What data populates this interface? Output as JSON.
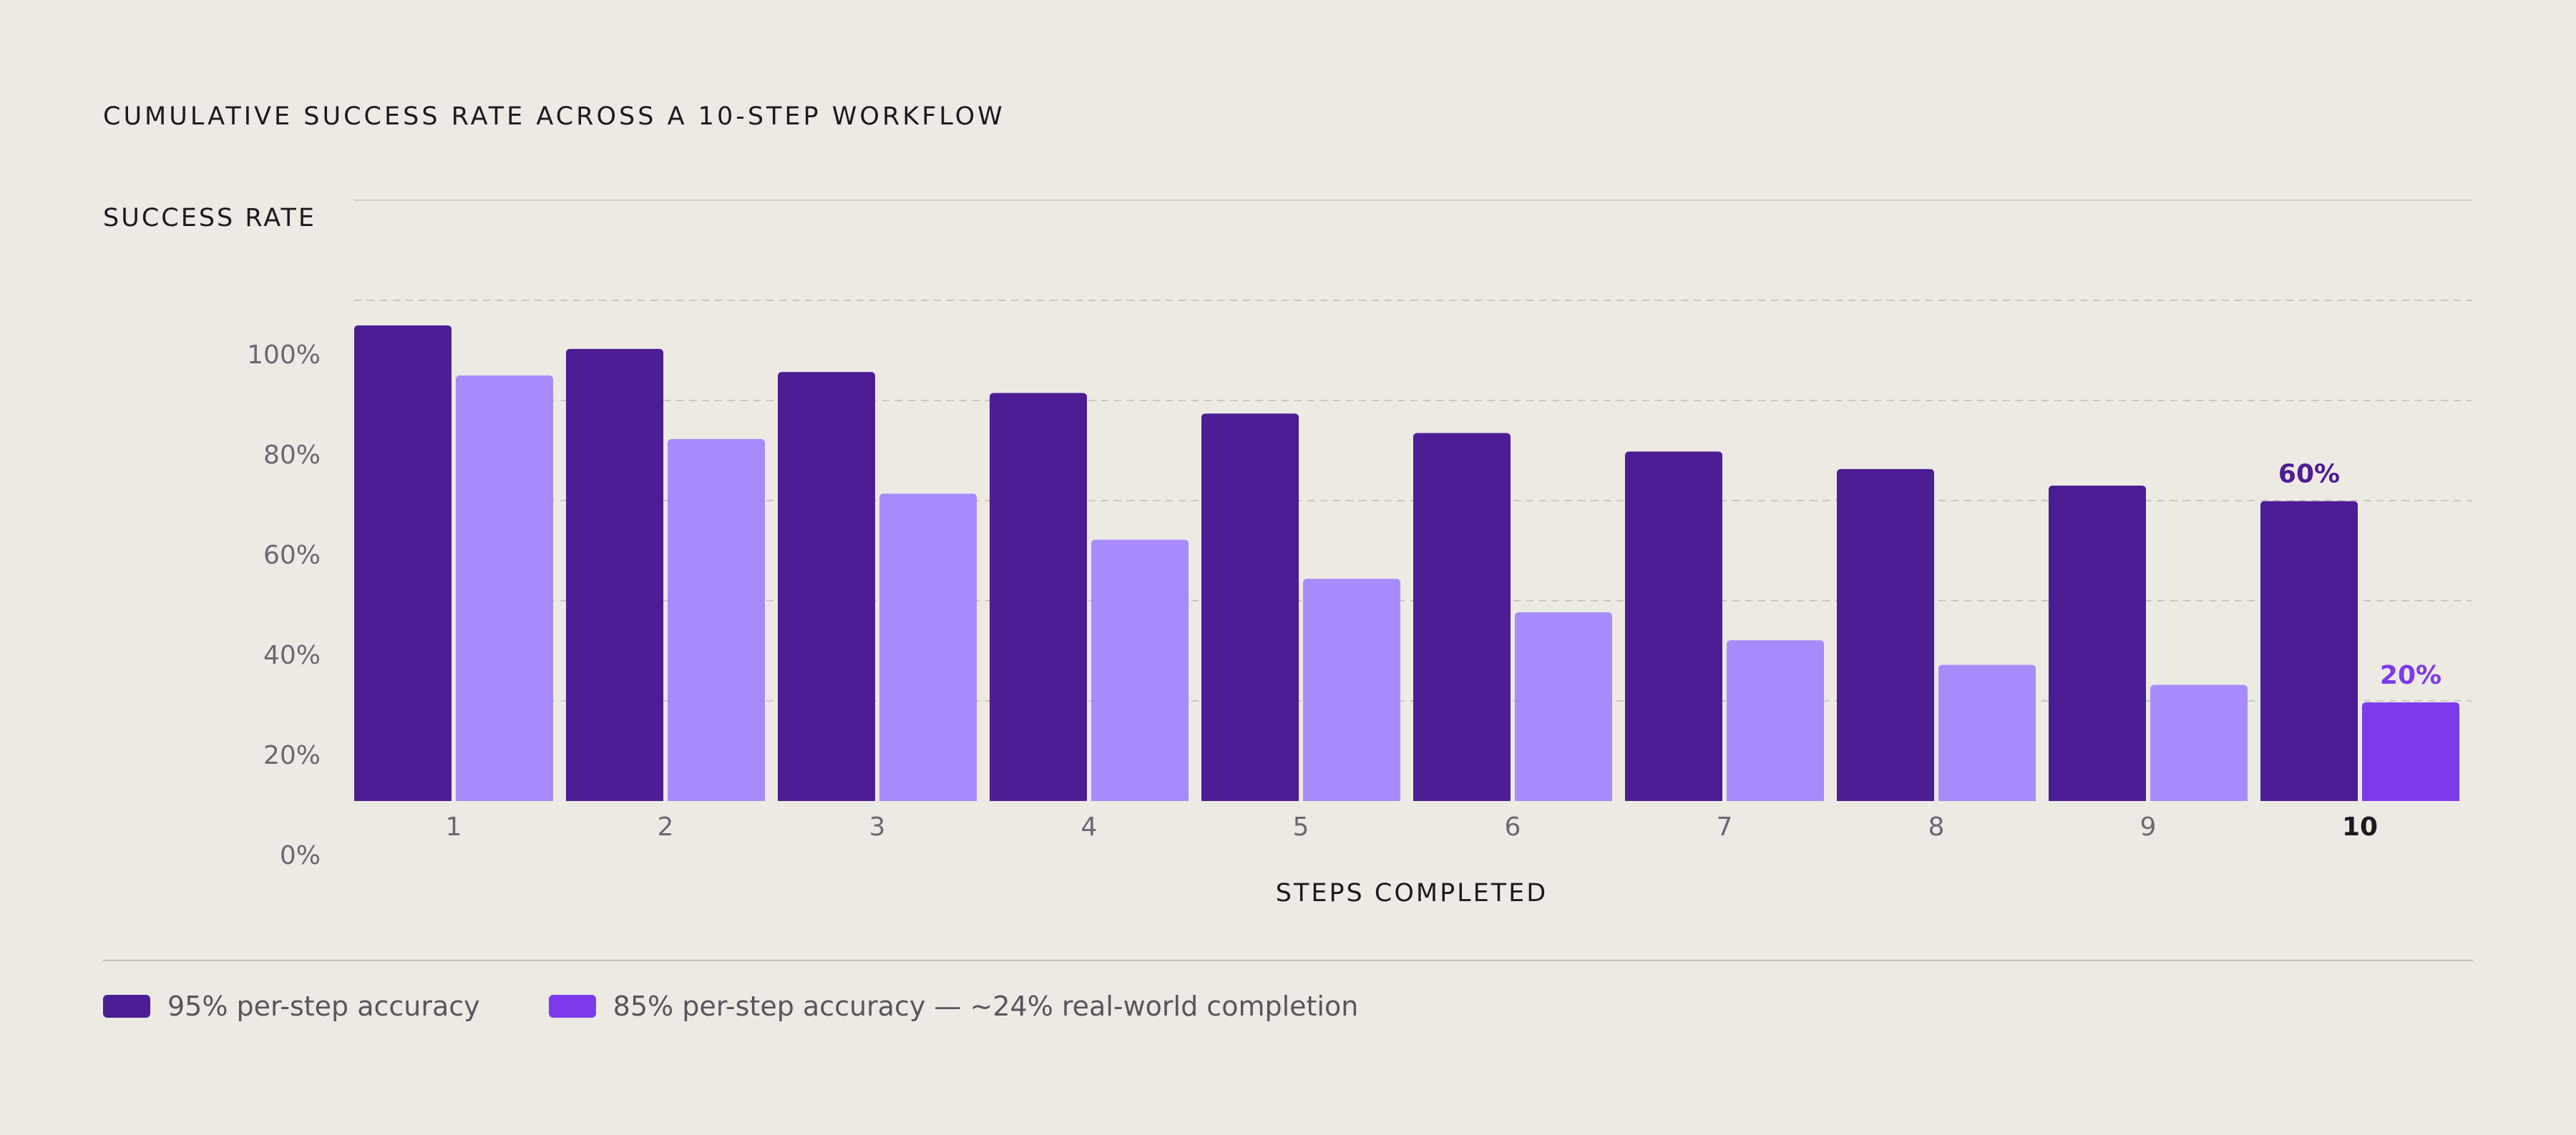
{
  "chart_data": {
    "type": "bar",
    "title": "CUMULATIVE SUCCESS RATE ACROSS A 10-STEP WORKFLOW",
    "ylabel": "SUCCESS RATE",
    "xlabel": "STEPS COMPLETED",
    "categories": [
      "1",
      "2",
      "3",
      "4",
      "5",
      "6",
      "7",
      "8",
      "9",
      "10"
    ],
    "y_ticks": [
      0,
      20,
      40,
      60,
      80,
      100
    ],
    "y_tick_labels": [
      "0%",
      "20%",
      "40%",
      "60%",
      "80%",
      "100%"
    ],
    "ylim": [
      0,
      120
    ],
    "grid": true,
    "legend_position": "bottom-left",
    "series": [
      {
        "name": "95% per-step accuracy",
        "color": "#4c1d95",
        "values": [
          95,
          90.3,
          85.7,
          81.5,
          77.4,
          73.5,
          69.8,
          66.3,
          63,
          59.9
        ]
      },
      {
        "name": "85% per-step accuracy — ~24% real-world completion",
        "color": "#a78bfa",
        "highlight_color": "#7c3aed",
        "values": [
          85,
          72.3,
          61.4,
          52.2,
          44.4,
          37.7,
          32.1,
          27.2,
          23.2,
          19.7
        ]
      }
    ],
    "annotations": [
      {
        "series": 0,
        "category": "10",
        "text": "60%",
        "color": "#4c1d95"
      },
      {
        "series": 1,
        "category": "10",
        "text": "20%",
        "color": "#7c3aed"
      }
    ],
    "highlight_category": "10"
  }
}
